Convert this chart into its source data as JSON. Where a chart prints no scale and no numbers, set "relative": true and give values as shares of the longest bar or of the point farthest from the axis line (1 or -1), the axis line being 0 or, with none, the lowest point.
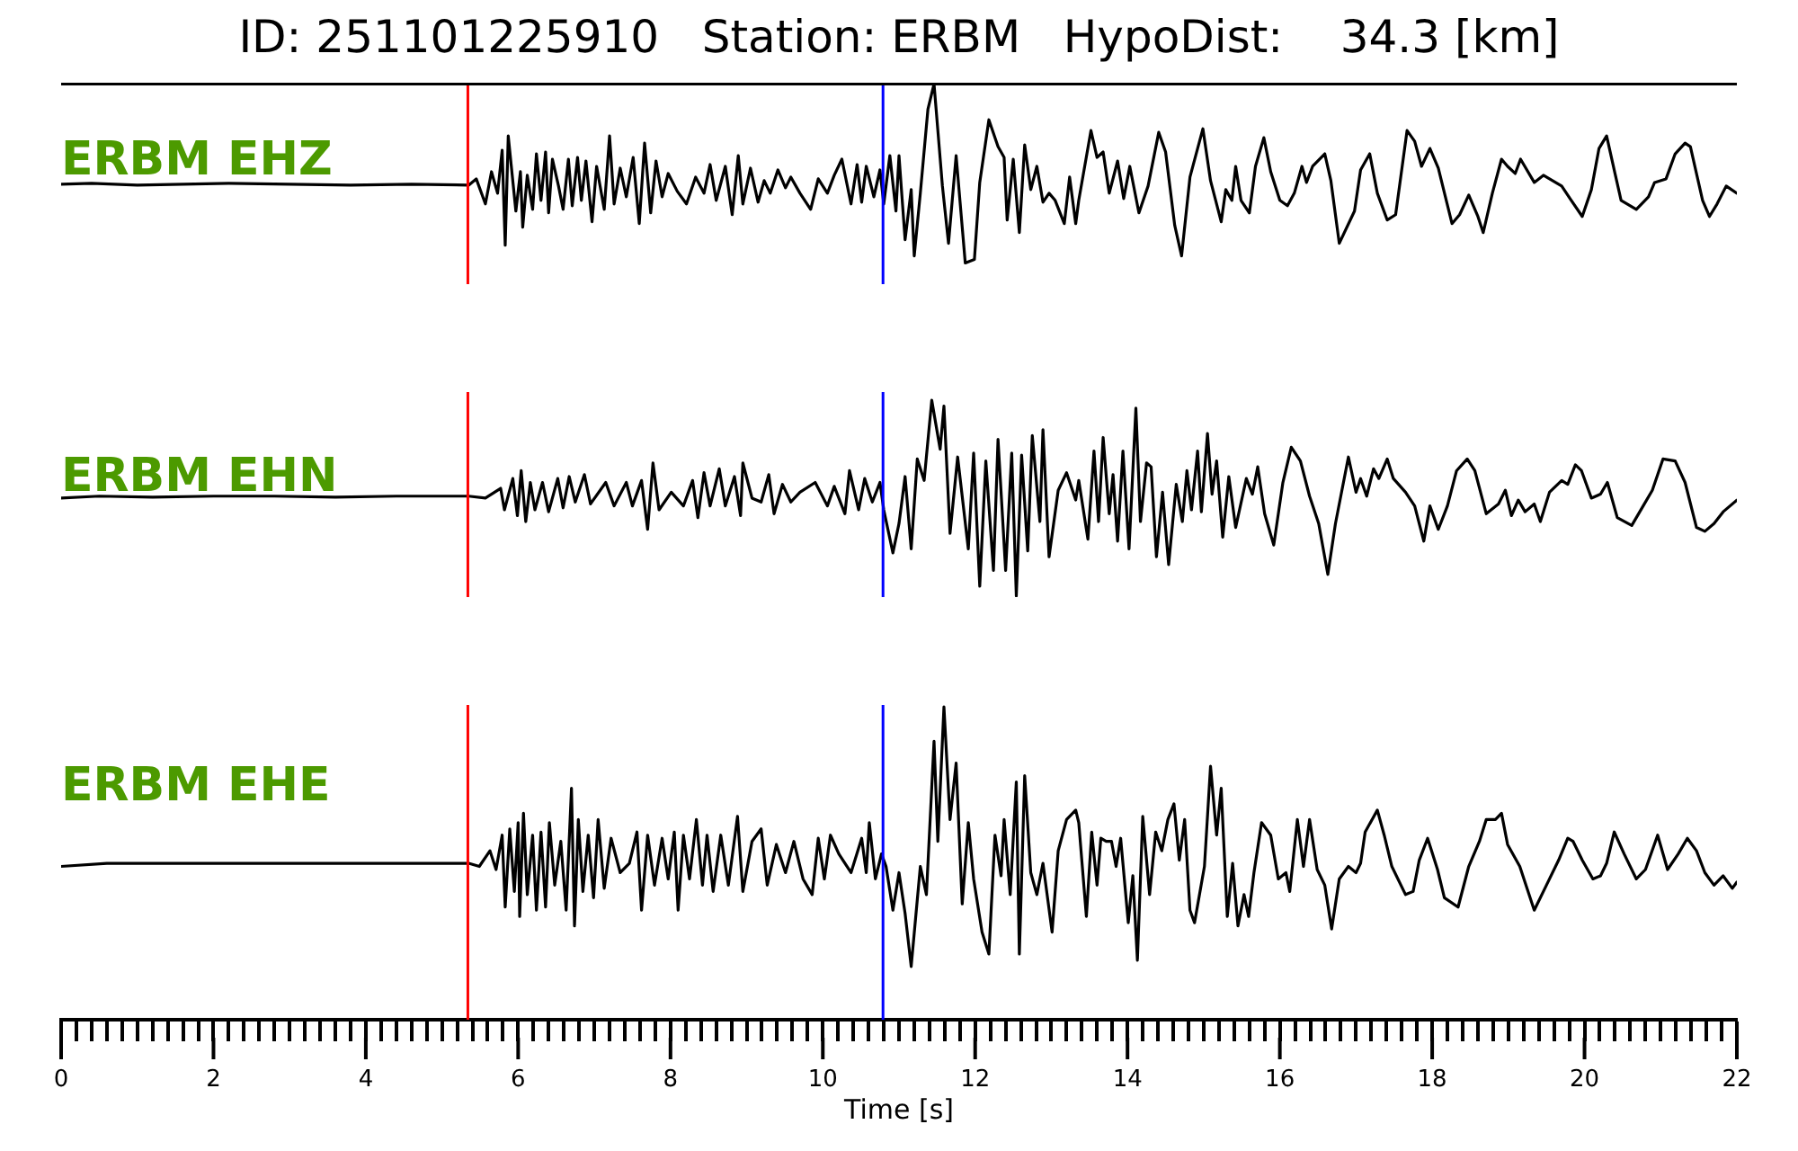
{
  "chart_data": [
    {
      "type": "line",
      "title": "ID: 251101225910   Station: ERBM   HypoDist:    34.3 [km]",
      "relative": true,
      "color": "#000000",
      "xlim": [
        0,
        22
      ],
      "tick_labels": false,
      "annotations": [
        "ERBM EHZ"
      ],
      "ref_lines": [
        {
          "axis": "x",
          "value": 5.34,
          "color": "#ff0000"
        },
        {
          "axis": "x",
          "value": 10.79,
          "color": "#0000ff"
        }
      ],
      "x": [
        0,
        0.4,
        1,
        1.6,
        2.2,
        3,
        3.8,
        4.6,
        5.35,
        5.45,
        5.57,
        5.65,
        5.73,
        5.79,
        5.83,
        5.87,
        5.97,
        6.03,
        6.06,
        6.12,
        6.19,
        6.24,
        6.3,
        6.36,
        6.4,
        6.45,
        6.53,
        6.59,
        6.66,
        6.71,
        6.78,
        6.83,
        6.89,
        6.97,
        7.03,
        7.13,
        7.2,
        7.26,
        7.34,
        7.42,
        7.51,
        7.59,
        7.66,
        7.74,
        7.81,
        7.89,
        7.97,
        8.09,
        8.21,
        8.33,
        8.44,
        8.52,
        8.6,
        8.72,
        8.81,
        8.89,
        8.95,
        9.05,
        9.15,
        9.23,
        9.31,
        9.41,
        9.51,
        9.58,
        9.7,
        9.84,
        9.94,
        10.06,
        10.15,
        10.25,
        10.37,
        10.45,
        10.51,
        10.57,
        10.67,
        10.75,
        10.8,
        10.88,
        10.96,
        11,
        11.08,
        11.16,
        11.2,
        11.28,
        11.38,
        11.46,
        11.57,
        11.65,
        11.75,
        11.87,
        11.99,
        12.06,
        12.18,
        12.3,
        12.38,
        12.42,
        12.5,
        12.58,
        12.65,
        12.73,
        12.81,
        12.89,
        12.97,
        13.05,
        13.17,
        13.24,
        13.32,
        13.36,
        13.52,
        13.6,
        13.68,
        13.76,
        13.87,
        13.95,
        14.03,
        14.15,
        14.27,
        14.41,
        14.5,
        14.62,
        14.71,
        14.82,
        14.99,
        15.09,
        15.23,
        15.29,
        15.37,
        15.42,
        15.49,
        15.6,
        15.68,
        15.79,
        15.88,
        16,
        16.1,
        16.19,
        16.29,
        16.35,
        16.43,
        16.59,
        16.67,
        16.78,
        16.98,
        17.06,
        17.18,
        17.28,
        17.41,
        17.52,
        17.67,
        17.77,
        17.86,
        17.97,
        18.08,
        18.26,
        18.36,
        18.48,
        18.6,
        18.67,
        18.79,
        18.91,
        18.99,
        19.09,
        19.16,
        19.34,
        19.46,
        19.7,
        19.81,
        19.97,
        20.09,
        20.19,
        20.29,
        20.4,
        20.48,
        20.68,
        20.84,
        20.92,
        21.07,
        21.19,
        21.32,
        21.39,
        21.55,
        21.64,
        21.74,
        21.86,
        22
      ],
      "values": [
        0.44,
        0.445,
        0.435,
        0.44,
        0.445,
        0.44,
        0.435,
        0.44,
        0.435,
        0.47,
        0.33,
        0.51,
        0.39,
        0.63,
        0.1,
        0.71,
        0.29,
        0.51,
        0.2,
        0.49,
        0.3,
        0.61,
        0.35,
        0.62,
        0.28,
        0.58,
        0.43,
        0.3,
        0.58,
        0.32,
        0.59,
        0.35,
        0.57,
        0.23,
        0.54,
        0.3,
        0.71,
        0.33,
        0.53,
        0.37,
        0.59,
        0.22,
        0.67,
        0.28,
        0.57,
        0.37,
        0.5,
        0.4,
        0.33,
        0.48,
        0.39,
        0.55,
        0.35,
        0.54,
        0.27,
        0.6,
        0.33,
        0.53,
        0.34,
        0.46,
        0.39,
        0.52,
        0.42,
        0.48,
        0.39,
        0.3,
        0.47,
        0.39,
        0.49,
        0.58,
        0.33,
        0.55,
        0.34,
        0.54,
        0.37,
        0.52,
        0.33,
        0.6,
        0.29,
        0.6,
        0.13,
        0.41,
        0.04,
        0.39,
        0.86,
        1,
        0.43,
        0.11,
        0.6,
        0,
        0.02,
        0.45,
        0.8,
        0.65,
        0.59,
        0.24,
        0.58,
        0.17,
        0.66,
        0.41,
        0.54,
        0.34,
        0.39,
        0.35,
        0.22,
        0.48,
        0.22,
        0.35,
        0.74,
        0.59,
        0.62,
        0.39,
        0.57,
        0.36,
        0.54,
        0.28,
        0.43,
        0.73,
        0.62,
        0.21,
        0.04,
        0.48,
        0.75,
        0.46,
        0.23,
        0.41,
        0.35,
        0.54,
        0.35,
        0.28,
        0.54,
        0.7,
        0.51,
        0.35,
        0.32,
        0.39,
        0.54,
        0.45,
        0.54,
        0.61,
        0.46,
        0.11,
        0.29,
        0.52,
        0.61,
        0.39,
        0.24,
        0.27,
        0.74,
        0.68,
        0.54,
        0.64,
        0.53,
        0.22,
        0.27,
        0.38,
        0.26,
        0.17,
        0.39,
        0.58,
        0.54,
        0.5,
        0.58,
        0.45,
        0.49,
        0.43,
        0.36,
        0.26,
        0.41,
        0.64,
        0.71,
        0.5,
        0.35,
        0.3,
        0.37,
        0.45,
        0.47,
        0.61,
        0.67,
        0.65,
        0.35,
        0.26,
        0.33,
        0.43,
        0.39
      ]
    },
    {
      "type": "line",
      "relative": true,
      "color": "#000000",
      "xlim": [
        0,
        22
      ],
      "tick_labels": false,
      "annotations": [
        "ERBM EHN"
      ],
      "ref_lines": [
        {
          "axis": "x",
          "value": 5.34,
          "color": "#ff0000"
        },
        {
          "axis": "x",
          "value": 10.79,
          "color": "#0000ff"
        }
      ],
      "x": [
        0,
        0.5,
        1.2,
        2,
        2.8,
        3.6,
        4.4,
        5.35,
        5.57,
        5.77,
        5.82,
        5.93,
        5.99,
        6.04,
        6.1,
        6.16,
        6.22,
        6.32,
        6.4,
        6.52,
        6.59,
        6.67,
        6.75,
        6.87,
        6.95,
        7.15,
        7.26,
        7.42,
        7.5,
        7.62,
        7.7,
        7.77,
        7.85,
        8.01,
        8.17,
        8.29,
        8.36,
        8.44,
        8.52,
        8.64,
        8.72,
        8.84,
        8.92,
        8.95,
        9.07,
        9.19,
        9.29,
        9.36,
        9.47,
        9.58,
        9.7,
        9.9,
        10.06,
        10.15,
        10.29,
        10.35,
        10.47,
        10.55,
        10.65,
        10.75,
        10.8,
        10.92,
        11,
        11.08,
        11.16,
        11.24,
        11.33,
        11.43,
        11.54,
        11.59,
        11.67,
        11.77,
        11.91,
        11.98,
        12.06,
        12.14,
        12.24,
        12.3,
        12.4,
        12.48,
        12.54,
        12.61,
        12.69,
        12.75,
        12.85,
        12.89,
        12.97,
        13.09,
        13.2,
        13.32,
        13.36,
        13.48,
        13.56,
        13.62,
        13.68,
        13.76,
        13.81,
        13.87,
        13.94,
        14.02,
        14.11,
        14.17,
        14.25,
        14.31,
        14.38,
        14.46,
        14.54,
        14.64,
        14.72,
        14.78,
        14.84,
        14.92,
        14.97,
        15.05,
        15.11,
        15.17,
        15.25,
        15.33,
        15.42,
        15.56,
        15.64,
        15.71,
        15.8,
        15.92,
        16.04,
        16.15,
        16.27,
        16.39,
        16.51,
        16.63,
        16.73,
        16.9,
        17,
        17.06,
        17.14,
        17.23,
        17.3,
        17.41,
        17.49,
        17.65,
        17.77,
        17.89,
        17.97,
        18.08,
        18.2,
        18.32,
        18.46,
        18.56,
        18.71,
        18.87,
        18.96,
        19.04,
        19.13,
        19.22,
        19.34,
        19.42,
        19.54,
        19.7,
        19.78,
        19.88,
        19.96,
        20.09,
        20.21,
        20.3,
        20.43,
        20.62,
        20.77,
        20.89,
        21.03,
        21.19,
        21.32,
        21.47,
        21.58,
        21.7,
        21.82,
        22
      ],
      "values": [
        0.5,
        0.51,
        0.505,
        0.51,
        0.51,
        0.505,
        0.51,
        0.51,
        0.5,
        0.55,
        0.44,
        0.6,
        0.41,
        0.64,
        0.38,
        0.58,
        0.44,
        0.58,
        0.43,
        0.6,
        0.45,
        0.61,
        0.48,
        0.62,
        0.47,
        0.58,
        0.46,
        0.58,
        0.46,
        0.59,
        0.34,
        0.68,
        0.44,
        0.53,
        0.46,
        0.59,
        0.4,
        0.63,
        0.46,
        0.65,
        0.46,
        0.61,
        0.41,
        0.68,
        0.5,
        0.48,
        0.62,
        0.42,
        0.57,
        0.48,
        0.53,
        0.58,
        0.46,
        0.56,
        0.42,
        0.64,
        0.44,
        0.6,
        0.48,
        0.58,
        0.44,
        0.22,
        0.37,
        0.61,
        0.24,
        0.7,
        0.59,
        1,
        0.75,
        0.97,
        0.32,
        0.71,
        0.24,
        0.73,
        0.05,
        0.69,
        0.13,
        0.8,
        0.13,
        0.73,
        0,
        0.72,
        0.23,
        0.82,
        0.38,
        0.85,
        0.2,
        0.54,
        0.63,
        0.49,
        0.59,
        0.29,
        0.74,
        0.38,
        0.81,
        0.42,
        0.62,
        0.28,
        0.74,
        0.24,
        0.96,
        0.38,
        0.68,
        0.66,
        0.2,
        0.53,
        0.16,
        0.57,
        0.38,
        0.64,
        0.44,
        0.74,
        0.43,
        0.83,
        0.52,
        0.69,
        0.3,
        0.61,
        0.35,
        0.6,
        0.52,
        0.66,
        0.42,
        0.26,
        0.58,
        0.76,
        0.69,
        0.51,
        0.37,
        0.11,
        0.37,
        0.71,
        0.53,
        0.6,
        0.51,
        0.65,
        0.6,
        0.7,
        0.6,
        0.53,
        0.46,
        0.28,
        0.46,
        0.34,
        0.46,
        0.64,
        0.7,
        0.64,
        0.42,
        0.47,
        0.54,
        0.41,
        0.49,
        0.43,
        0.47,
        0.38,
        0.53,
        0.59,
        0.57,
        0.67,
        0.64,
        0.5,
        0.52,
        0.58,
        0.4,
        0.36,
        0.46,
        0.54,
        0.7,
        0.69,
        0.58,
        0.35,
        0.33,
        0.37,
        0.43,
        0.49
      ]
    },
    {
      "type": "line",
      "xlabel": "Time [s]",
      "relative": true,
      "color": "#000000",
      "xlim": [
        0,
        22
      ],
      "tick_labels": "x",
      "annotations": [
        "ERBM EHE"
      ],
      "ref_lines": [
        {
          "axis": "x",
          "value": 5.34,
          "color": "#ff0000"
        },
        {
          "axis": "x",
          "value": 10.79,
          "color": "#0000ff"
        }
      ],
      "xticks": [
        0,
        {
          "value": 0.2,
          "label": null
        },
        {
          "value": 0.4,
          "label": null
        },
        {
          "value": 0.6,
          "label": null
        },
        {
          "value": 0.8,
          "label": null
        },
        {
          "value": 1,
          "label": null
        },
        {
          "value": 1.2,
          "label": null
        },
        {
          "value": 1.4,
          "label": null
        },
        {
          "value": 1.6,
          "label": null
        },
        {
          "value": 1.8,
          "label": null
        },
        2,
        {
          "value": 2.2,
          "label": null
        },
        {
          "value": 2.4,
          "label": null
        },
        {
          "value": 2.6,
          "label": null
        },
        {
          "value": 2.8,
          "label": null
        },
        {
          "value": 3,
          "label": null
        },
        {
          "value": 3.2,
          "label": null
        },
        {
          "value": 3.4,
          "label": null
        },
        {
          "value": 3.6,
          "label": null
        },
        {
          "value": 3.8,
          "label": null
        },
        4,
        {
          "value": 4.2,
          "label": null
        },
        {
          "value": 4.4,
          "label": null
        },
        {
          "value": 4.6,
          "label": null
        },
        {
          "value": 4.8,
          "label": null
        },
        {
          "value": 5,
          "label": null
        },
        {
          "value": 5.2,
          "label": null
        },
        {
          "value": 5.4,
          "label": null
        },
        {
          "value": 5.6,
          "label": null
        },
        {
          "value": 5.8,
          "label": null
        },
        6,
        {
          "value": 6.2,
          "label": null
        },
        {
          "value": 6.4,
          "label": null
        },
        {
          "value": 6.6,
          "label": null
        },
        {
          "value": 6.8,
          "label": null
        },
        {
          "value": 7,
          "label": null
        },
        {
          "value": 7.2,
          "label": null
        },
        {
          "value": 7.4,
          "label": null
        },
        {
          "value": 7.6,
          "label": null
        },
        {
          "value": 7.8,
          "label": null
        },
        8,
        {
          "value": 8.2,
          "label": null
        },
        {
          "value": 8.4,
          "label": null
        },
        {
          "value": 8.6,
          "label": null
        },
        {
          "value": 8.8,
          "label": null
        },
        {
          "value": 9,
          "label": null
        },
        {
          "value": 9.2,
          "label": null
        },
        {
          "value": 9.4,
          "label": null
        },
        {
          "value": 9.6,
          "label": null
        },
        {
          "value": 9.8,
          "label": null
        },
        10,
        {
          "value": 10.2,
          "label": null
        },
        {
          "value": 10.4,
          "label": null
        },
        {
          "value": 10.6,
          "label": null
        },
        {
          "value": 10.8,
          "label": null
        },
        {
          "value": 11,
          "label": null
        },
        {
          "value": 11.2,
          "label": null
        },
        {
          "value": 11.4,
          "label": null
        },
        {
          "value": 11.6,
          "label": null
        },
        {
          "value": 11.8,
          "label": null
        },
        12,
        {
          "value": 12.2,
          "label": null
        },
        {
          "value": 12.4,
          "label": null
        },
        {
          "value": 12.6,
          "label": null
        },
        {
          "value": 12.8,
          "label": null
        },
        {
          "value": 13,
          "label": null
        },
        {
          "value": 13.2,
          "label": null
        },
        {
          "value": 13.4,
          "label": null
        },
        {
          "value": 13.6,
          "label": null
        },
        {
          "value": 13.8,
          "label": null
        },
        14,
        {
          "value": 14.2,
          "label": null
        },
        {
          "value": 14.4,
          "label": null
        },
        {
          "value": 14.6,
          "label": null
        },
        {
          "value": 14.8,
          "label": null
        },
        {
          "value": 15,
          "label": null
        },
        {
          "value": 15.2,
          "label": null
        },
        {
          "value": 15.4,
          "label": null
        },
        {
          "value": 15.6,
          "label": null
        },
        {
          "value": 15.8,
          "label": null
        },
        16,
        {
          "value": 16.2,
          "label": null
        },
        {
          "value": 16.4,
          "label": null
        },
        {
          "value": 16.6,
          "label": null
        },
        {
          "value": 16.8,
          "label": null
        },
        {
          "value": 17,
          "label": null
        },
        {
          "value": 17.2,
          "label": null
        },
        {
          "value": 17.4,
          "label": null
        },
        {
          "value": 17.6,
          "label": null
        },
        {
          "value": 17.8,
          "label": null
        },
        18,
        {
          "value": 18.2,
          "label": null
        },
        {
          "value": 18.4,
          "label": null
        },
        {
          "value": 18.6,
          "label": null
        },
        {
          "value": 18.8,
          "label": null
        },
        {
          "value": 19,
          "label": null
        },
        {
          "value": 19.2,
          "label": null
        },
        {
          "value": 19.4,
          "label": null
        },
        {
          "value": 19.6,
          "label": null
        },
        {
          "value": 19.8,
          "label": null
        },
        20,
        {
          "value": 20.2,
          "label": null
        },
        {
          "value": 20.4,
          "label": null
        },
        {
          "value": 20.6,
          "label": null
        },
        {
          "value": 20.8,
          "label": null
        },
        {
          "value": 21,
          "label": null
        },
        {
          "value": 21.2,
          "label": null
        },
        {
          "value": 21.4,
          "label": null
        },
        {
          "value": 21.6,
          "label": null
        },
        {
          "value": 21.8,
          "label": null
        },
        22
      ],
      "x": [
        0,
        0.6,
        1.3,
        2,
        2.8,
        3.6,
        4.4,
        5.35,
        5.49,
        5.63,
        5.71,
        5.79,
        5.83,
        5.89,
        5.95,
        6,
        6.02,
        6.07,
        6.12,
        6.19,
        6.24,
        6.3,
        6.36,
        6.41,
        6.48,
        6.56,
        6.63,
        6.7,
        6.74,
        6.79,
        6.85,
        6.92,
        6.99,
        7.05,
        7.13,
        7.22,
        7.34,
        7.46,
        7.56,
        7.62,
        7.7,
        7.79,
        7.89,
        7.97,
        8.05,
        8.1,
        8.17,
        8.25,
        8.34,
        8.42,
        8.48,
        8.56,
        8.66,
        8.76,
        8.88,
        8.95,
        9.07,
        9.19,
        9.27,
        9.39,
        9.51,
        9.62,
        9.74,
        9.86,
        9.94,
        10.02,
        10.1,
        10.21,
        10.37,
        10.51,
        10.57,
        10.61,
        10.69,
        10.77,
        10.83,
        10.92,
        11,
        11.08,
        11.16,
        11.28,
        11.36,
        11.46,
        11.51,
        11.59,
        11.67,
        11.75,
        11.83,
        11.91,
        11.98,
        12.09,
        12.18,
        12.26,
        12.34,
        12.38,
        12.46,
        12.54,
        12.58,
        12.65,
        12.73,
        12.81,
        12.89,
        13.01,
        13.09,
        13.2,
        13.32,
        13.36,
        13.46,
        13.53,
        13.6,
        13.65,
        13.72,
        13.79,
        13.85,
        13.91,
        14.01,
        14.07,
        14.13,
        14.2,
        14.29,
        14.37,
        14.45,
        14.53,
        14.61,
        14.68,
        14.75,
        14.82,
        14.88,
        15.01,
        15.09,
        15.17,
        15.23,
        15.31,
        15.38,
        15.45,
        15.53,
        15.59,
        15.66,
        15.76,
        15.88,
        15.98,
        16.08,
        16.13,
        16.23,
        16.31,
        16.39,
        16.49,
        16.59,
        16.68,
        16.78,
        16.9,
        17,
        17.06,
        17.12,
        17.28,
        17.37,
        17.47,
        17.65,
        17.75,
        17.83,
        17.94,
        18.07,
        18.16,
        18.34,
        18.48,
        18.62,
        18.71,
        18.83,
        18.91,
        18.99,
        19.15,
        19.34,
        19.5,
        19.66,
        19.78,
        19.85,
        19.97,
        20.11,
        20.21,
        20.29,
        20.39,
        20.52,
        20.68,
        20.8,
        20.96,
        21.09,
        21.23,
        21.35,
        21.47,
        21.58,
        21.7,
        21.82,
        21.94,
        22
      ],
      "values": [
        0.49,
        0.5,
        0.5,
        0.5,
        0.5,
        0.5,
        0.5,
        0.5,
        0.49,
        0.54,
        0.48,
        0.59,
        0.36,
        0.61,
        0.41,
        0.63,
        0.33,
        0.66,
        0.4,
        0.59,
        0.35,
        0.6,
        0.36,
        0.63,
        0.43,
        0.57,
        0.35,
        0.74,
        0.3,
        0.64,
        0.41,
        0.59,
        0.39,
        0.64,
        0.42,
        0.58,
        0.47,
        0.5,
        0.6,
        0.35,
        0.59,
        0.43,
        0.58,
        0.45,
        0.6,
        0.35,
        0.59,
        0.45,
        0.64,
        0.43,
        0.59,
        0.41,
        0.59,
        0.43,
        0.65,
        0.41,
        0.57,
        0.61,
        0.43,
        0.56,
        0.47,
        0.57,
        0.45,
        0.4,
        0.58,
        0.45,
        0.59,
        0.53,
        0.47,
        0.58,
        0.47,
        0.63,
        0.45,
        0.53,
        0.49,
        0.35,
        0.47,
        0.34,
        0.17,
        0.49,
        0.4,
        0.89,
        0.57,
        1,
        0.64,
        0.82,
        0.37,
        0.63,
        0.45,
        0.28,
        0.21,
        0.59,
        0.46,
        0.64,
        0.4,
        0.76,
        0.21,
        0.78,
        0.47,
        0.4,
        0.5,
        0.28,
        0.54,
        0.64,
        0.67,
        0.63,
        0.33,
        0.6,
        0.43,
        0.58,
        0.57,
        0.57,
        0.49,
        0.58,
        0.31,
        0.46,
        0.19,
        0.65,
        0.4,
        0.6,
        0.54,
        0.64,
        0.69,
        0.51,
        0.64,
        0.35,
        0.31,
        0.49,
        0.81,
        0.59,
        0.74,
        0.33,
        0.5,
        0.3,
        0.4,
        0.33,
        0.47,
        0.63,
        0.59,
        0.45,
        0.47,
        0.41,
        0.64,
        0.49,
        0.64,
        0.48,
        0.43,
        0.29,
        0.45,
        0.49,
        0.47,
        0.5,
        0.6,
        0.67,
        0.59,
        0.49,
        0.4,
        0.41,
        0.51,
        0.58,
        0.48,
        0.39,
        0.36,
        0.49,
        0.57,
        0.64,
        0.64,
        0.66,
        0.56,
        0.49,
        0.35,
        0.43,
        0.51,
        0.58,
        0.57,
        0.51,
        0.45,
        0.46,
        0.5,
        0.6,
        0.53,
        0.45,
        0.48,
        0.59,
        0.48,
        0.53,
        0.58,
        0.54,
        0.47,
        0.43,
        0.46,
        0.42,
        0.44
      ]
    }
  ]
}
